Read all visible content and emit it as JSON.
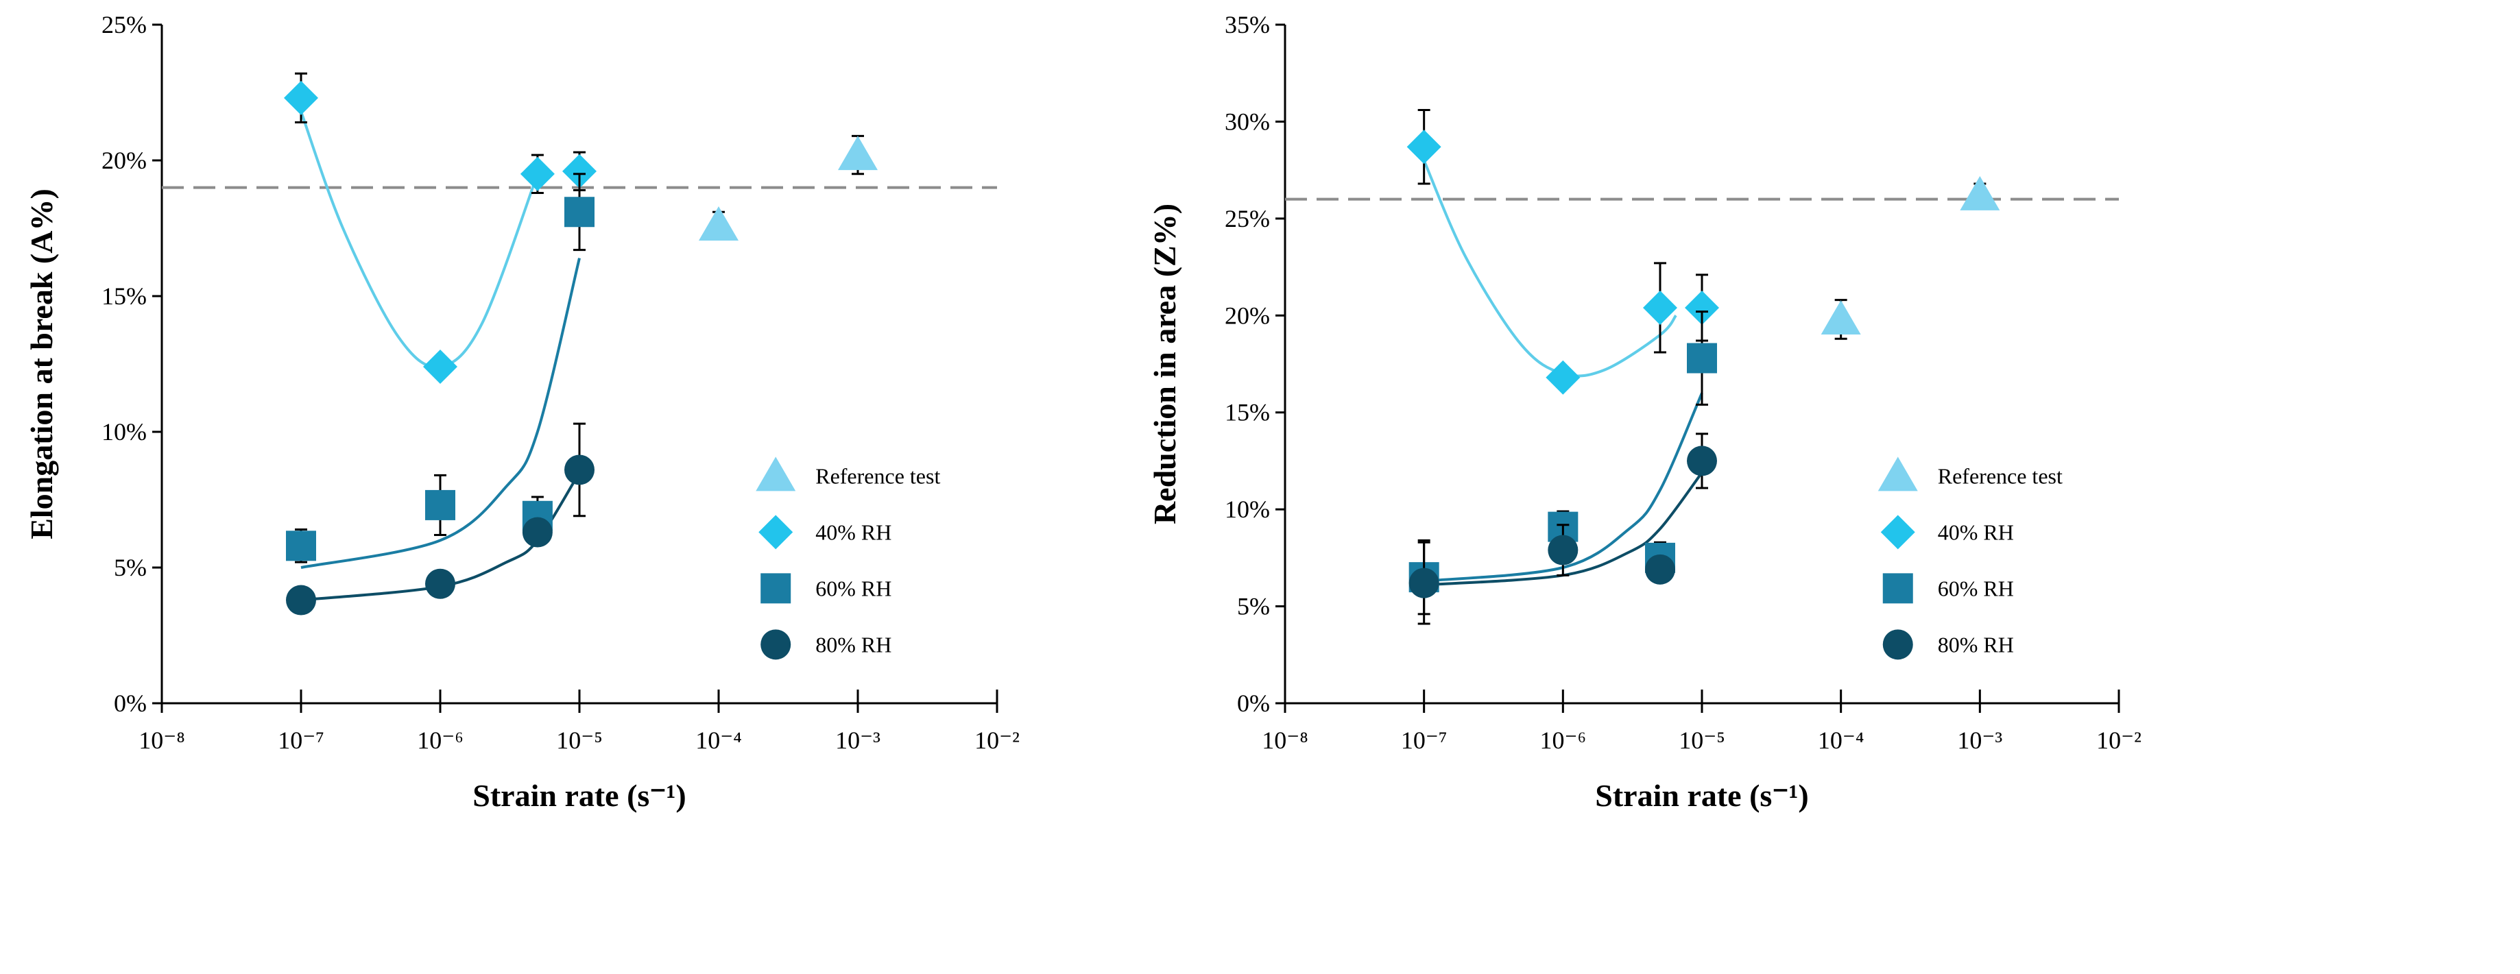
{
  "chart_data": [
    {
      "type": "scatter",
      "xscale": "log",
      "xlabel": "Strain rate (s⁻¹)",
      "ylabel": "Elongation at break (A%)",
      "xlim": [
        1e-08,
        0.01
      ],
      "xticks": [
        {
          "value": 1e-08,
          "label": "10⁻⁸"
        },
        {
          "value": 1e-07,
          "label": "10⁻⁷"
        },
        {
          "value": 1e-06,
          "label": "10⁻⁶"
        },
        {
          "value": 1e-05,
          "label": "10⁻⁵"
        },
        {
          "value": 0.0001,
          "label": "10⁻⁴"
        },
        {
          "value": 0.001,
          "label": "10⁻³"
        },
        {
          "value": 0.01,
          "label": "10⁻²"
        }
      ],
      "ylim": [
        0,
        25
      ],
      "yticks": [
        {
          "value": 0,
          "label": "0%"
        },
        {
          "value": 5,
          "label": "5%"
        },
        {
          "value": 10,
          "label": "10%"
        },
        {
          "value": 15,
          "label": "15%"
        },
        {
          "value": 20,
          "label": "20%"
        },
        {
          "value": 25,
          "label": "25%"
        }
      ],
      "reference_line": 19,
      "legend": "lower right",
      "series": [
        {
          "name": "Reference test",
          "color": "#7fd3f0",
          "marker": "triangle",
          "x": [
            0.0001,
            0.001
          ],
          "values": [
            17.6,
            20.2
          ],
          "errors": [
            0.5,
            0.7
          ]
        },
        {
          "name": "40% RH",
          "color": "#22c4ec",
          "marker": "diamond",
          "x": [
            1e-07,
            1e-06,
            5e-06,
            1e-05
          ],
          "values": [
            22.3,
            12.4,
            19.5,
            19.6
          ],
          "errors": [
            0.9,
            0.2,
            0.7,
            0.7
          ],
          "fit": {
            "color": "#5fcde9",
            "x": [
              1e-07,
              2e-07,
              5e-07,
              1e-06,
              2e-06,
              5e-06
            ],
            "values": [
              21.8,
              17.5,
              13.5,
              12.4,
              14.0,
              19.5
            ]
          }
        },
        {
          "name": "60% RH",
          "color": "#1a7da3",
          "marker": "square",
          "x": [
            1e-07,
            1e-06,
            5e-06,
            1e-05
          ],
          "values": [
            5.8,
            7.3,
            6.9,
            18.1
          ],
          "errors": [
            0.6,
            1.1,
            0.7,
            1.4
          ],
          "fit": {
            "color": "#1a7da3",
            "x": [
              1e-07,
              1e-06,
              3e-06,
              5e-06,
              1e-05
            ],
            "values": [
              5.0,
              6.0,
              8.0,
              10.0,
              16.4
            ]
          }
        },
        {
          "name": "80% RH",
          "color": "#0d4d66",
          "marker": "circle",
          "x": [
            1e-07,
            1e-06,
            5e-06,
            1e-05
          ],
          "values": [
            3.8,
            4.4,
            6.3,
            8.6
          ],
          "errors": [
            0.3,
            0.1,
            0.4,
            1.7
          ],
          "fit": {
            "color": "#0d4d66",
            "x": [
              1e-07,
              1e-06,
              3e-06,
              5e-06,
              1e-05
            ],
            "values": [
              3.8,
              4.3,
              5.2,
              6.0,
              8.5
            ]
          }
        }
      ]
    },
    {
      "type": "scatter",
      "xscale": "log",
      "xlabel": "Strain rate (s⁻¹)",
      "ylabel": "Reduction in area (Z%)",
      "xlim": [
        1e-08,
        0.01
      ],
      "xticks": [
        {
          "value": 1e-08,
          "label": "10⁻⁸"
        },
        {
          "value": 1e-07,
          "label": "10⁻⁷"
        },
        {
          "value": 1e-06,
          "label": "10⁻⁶"
        },
        {
          "value": 1e-05,
          "label": "10⁻⁵"
        },
        {
          "value": 0.0001,
          "label": "10⁻⁴"
        },
        {
          "value": 0.001,
          "label": "10⁻³"
        },
        {
          "value": 0.01,
          "label": "10⁻²"
        }
      ],
      "ylim": [
        0,
        35
      ],
      "yticks": [
        {
          "value": 0,
          "label": "0%"
        },
        {
          "value": 5,
          "label": "5%"
        },
        {
          "value": 10,
          "label": "10%"
        },
        {
          "value": 15,
          "label": "15%"
        },
        {
          "value": 20,
          "label": "20%"
        },
        {
          "value": 25,
          "label": "25%"
        },
        {
          "value": 30,
          "label": "30%"
        },
        {
          "value": 35,
          "label": "35%"
        }
      ],
      "reference_line": 26,
      "legend": "lower right",
      "series": [
        {
          "name": "Reference test",
          "color": "#7fd3f0",
          "marker": "triangle",
          "x": [
            0.0001,
            0.001
          ],
          "values": [
            19.8,
            26.2
          ],
          "errors": [
            1.0,
            0.6
          ]
        },
        {
          "name": "40% RH",
          "color": "#22c4ec",
          "marker": "diamond",
          "x": [
            1e-07,
            1e-06,
            5e-06,
            1e-05
          ],
          "values": [
            28.7,
            16.8,
            20.4,
            20.4
          ],
          "errors": [
            1.9,
            0.4,
            2.3,
            1.7
          ],
          "fit": {
            "color": "#5fcde9",
            "x": [
              1e-07,
              2e-07,
              5e-07,
              1e-06,
              2e-06,
              5e-06,
              6.5e-06
            ],
            "values": [
              28.0,
              23.0,
              18.5,
              17.0,
              17.2,
              19.0,
              20.0
            ]
          }
        },
        {
          "name": "60% RH",
          "color": "#1a7da3",
          "marker": "square",
          "x": [
            1e-07,
            1e-06,
            5e-06,
            1e-05
          ],
          "values": [
            6.5,
            9.1,
            7.5,
            17.8
          ],
          "errors": [
            1.9,
            0.8,
            0.8,
            2.4
          ],
          "fit": {
            "color": "#1a7da3",
            "x": [
              1e-07,
              1e-06,
              3e-06,
              5e-06,
              1e-05
            ],
            "values": [
              6.3,
              7.0,
              9.0,
              11.0,
              16.0
            ]
          }
        },
        {
          "name": "80% RH",
          "color": "#0d4d66",
          "marker": "circle",
          "x": [
            1e-07,
            1e-06,
            5e-06,
            1e-05
          ],
          "values": [
            6.2,
            7.9,
            6.9,
            12.5
          ],
          "errors": [
            2.1,
            1.3,
            0.3,
            1.4
          ],
          "fit": {
            "color": "#0d4d66",
            "x": [
              1e-07,
              1e-06,
              3e-06,
              5e-06,
              1e-05
            ],
            "values": [
              6.1,
              6.6,
              7.8,
              9.0,
              11.9
            ]
          }
        }
      ]
    }
  ]
}
